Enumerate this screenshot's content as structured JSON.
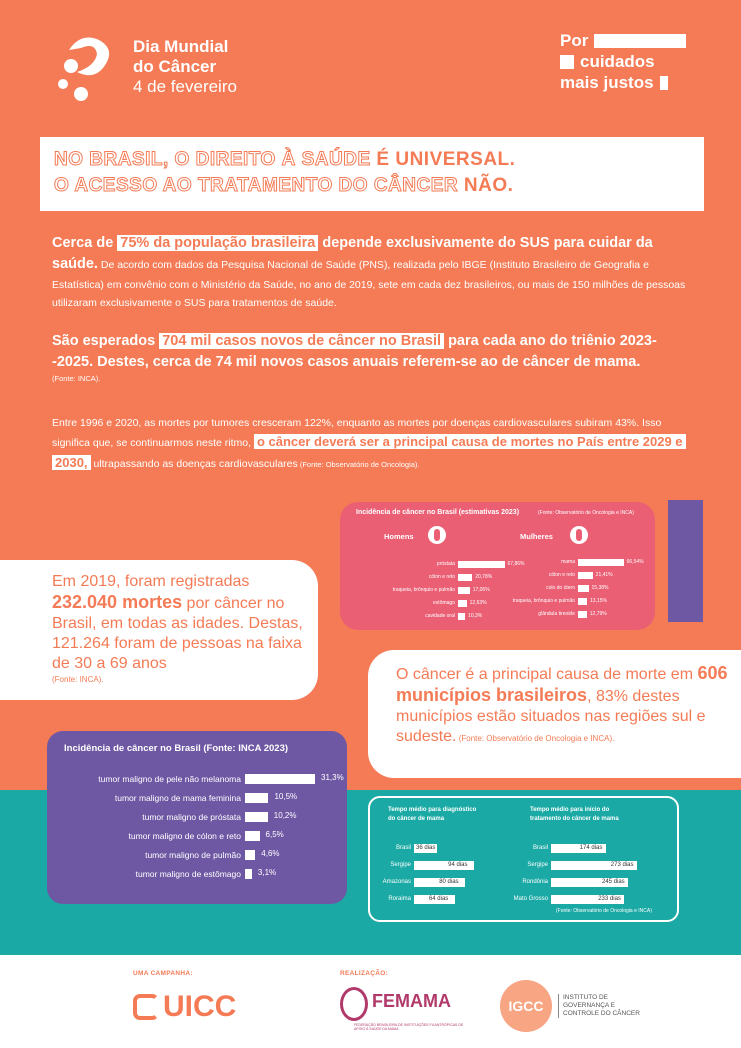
{
  "colors": {
    "orange": "#f47b55",
    "purple": "#6e57a3",
    "teal": "#1aa9a4",
    "pink": "#ea5f74",
    "white": "#ffffff"
  },
  "header": {
    "event_line1": "Dia Mundial",
    "event_line2": "do Câncer",
    "event_line3": "4 de fevereiro",
    "slogan_line1": "Por",
    "slogan_line2": "cuidados",
    "slogan_line3": "mais justos",
    "logo_icon": "ribbon-dots-logo"
  },
  "headline": {
    "line1_outline": "NO BRASIL, O DIREITO À SAÚDE ",
    "line1_solid": "É UNIVERSAL.",
    "line2_outline": "O ACESSO AO TRATAMENTO DO CÂNCER ",
    "line2_solid": "NÃO."
  },
  "para1": {
    "pre": "Cerca de ",
    "highlight": "75% da população brasileira",
    "post": " depende exclusivamente do SUS para cuidar da saúde.",
    "detail": " De acordo com dados da Pesquisa Nacional de Saúde (PNS), realizada pelo IBGE (Instituto Brasileiro de Geografia e Estatística) em convênio com o Ministério da Saúde, no ano de 2019, sete em cada dez brasileiros, ou mais de 150 milhões de pessoas utilizaram exclusivamente o SUS para tratamentos de saúde."
  },
  "para2": {
    "pre": "São esperados ",
    "highlight": "704 mil casos novos de câncer no Brasil",
    "post": " para cada ano do triênio 2023--2025. Destes, cerca de 74 mil novos casos anuais referem-se ao de câncer de mama.",
    "source": "(Fonte: INCA)."
  },
  "para3": {
    "pre": "Entre 1996 e 2020, as mortes por tumores cresceram 122%, enquanto as mortes por doenças cardiovasculares subiram 43%. Isso significa que, se continuarmos neste ritmo, ",
    "highlight": "o câncer deverá ser a principal causa de mortes no País entre 2029 e 2030,",
    "post": " ultrapassando as doenças cardiovasculares",
    "source": " (Fonte: Observatório de Oncologia)."
  },
  "card_left": {
    "line1": "Em 2019, foram registradas",
    "bold": "232.040 mortes",
    "line2": " por câncer no Brasil, em todas as idades. Destas, 121.264 foram de pessoas na faixa de 30 a 69 anos",
    "source": "(Fonte: INCA)."
  },
  "card_right": {
    "line1": "O câncer é a principal causa de morte em ",
    "bold": "606 municípios brasileiros",
    "line2": ", 83% destes municípios estão situados nas regiões sul e sudeste.",
    "source": " (Fonte: Observatório de Oncologia e INCA)."
  },
  "pink_chart": {
    "title": "Incidência de câncer no Brasil (estimativas 2023)",
    "source": "(Fonte: Observatório de Oncologia e INCA)",
    "men_label": "Homens",
    "women_label": "Mulheres"
  },
  "purple_chart": {
    "title": "Incidência de câncer no Brasil",
    "source": " (Fonte: INCA 2023)"
  },
  "teal_chart": {
    "left_title_1": "Tempo médio para diagnóstico",
    "left_title_2": "do câncer de mama",
    "right_title_1": "Tempo médio para início do",
    "right_title_2": "tratamento do câncer de mama",
    "source": "(Fonte: Observatório de Oncologia e INCA)"
  },
  "chart_data": [
    {
      "type": "bar",
      "title": "Incidência de câncer no Brasil (estimativas 2023)",
      "series": [
        {
          "name": "Homens",
          "categories": [
            "próstata",
            "cólon e reto",
            "traqueia, brônquio e pulmão",
            "estômago",
            "cavidade oral"
          ],
          "values": [
            67.86,
            20.78,
            17.06,
            12.63,
            10.3
          ],
          "labels": [
            "67,86%",
            "20,78%",
            "17,06%",
            "12,63%",
            "10,3%"
          ]
        },
        {
          "name": "Mulheres",
          "categories": [
            "mama",
            "cólon e reto",
            "colo do útero",
            "traqueia, brônquio e pulmão",
            "glândula tireoide"
          ],
          "values": [
            66.54,
            21.41,
            15.38,
            13.15,
            12.79
          ],
          "labels": [
            "66,54%",
            "21,41%",
            "15,38%",
            "13,15%",
            "12,79%"
          ]
        }
      ]
    },
    {
      "type": "bar",
      "title": "Incidência de câncer no Brasil (Fonte: INCA 2023)",
      "categories": [
        "tumor maligno de pele não melanoma",
        "tumor maligno de mama feminina",
        "tumor maligno de próstata",
        "tumor maligno de cólon e reto",
        "tumor maligno de pulmão",
        "tumor maligno de estômago"
      ],
      "values": [
        31.3,
        10.5,
        10.2,
        6.5,
        4.6,
        3.1
      ],
      "labels": [
        "31,3%",
        "10,5%",
        "10,2%",
        "6,5%",
        "4,6%",
        "3,1%"
      ]
    },
    {
      "type": "bar",
      "title": "Tempo médio para diagnóstico do câncer de mama",
      "categories": [
        "Brasil",
        "Sergipe",
        "Amazonas",
        "Roraima"
      ],
      "values": [
        36,
        94,
        80,
        64
      ],
      "labels": [
        "36 dias",
        "94 dias",
        "80 dias",
        "64 dias"
      ]
    },
    {
      "type": "bar",
      "title": "Tempo médio para início do tratamento do câncer de mama",
      "categories": [
        "Brasil",
        "Sergipe",
        "Rondônia",
        "Mato Grosso"
      ],
      "values": [
        174,
        273,
        245,
        233
      ],
      "labels": [
        "174 dias",
        "273 dias",
        "245 dias",
        "233 dias"
      ]
    }
  ],
  "footer": {
    "campaign_label": "UMA CAMPANHA:",
    "realization_label": "REALIZAÇÃO:",
    "uicc": "UICC",
    "femama": "FEMAMA",
    "femama_sub": "FEDERAÇÃO BRASILEIRA DE INSTITUIÇÕES FILANTRÓPICAS DE APOIO À SAÚDE DA MAMA",
    "igcc": "IGCC",
    "igcc_sub": "INSTITUTO DE GOVERNANÇA E CONTROLE DO CÂNCER"
  }
}
